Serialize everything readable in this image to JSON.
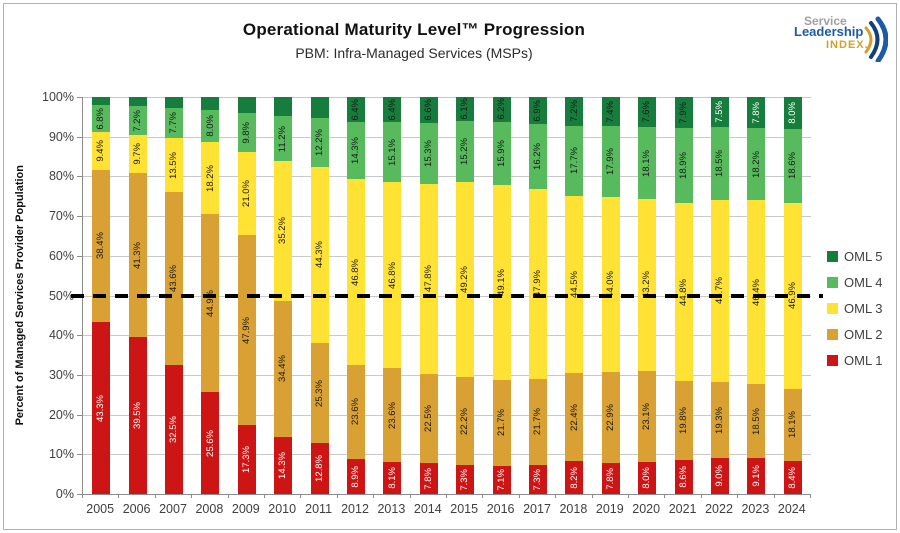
{
  "header": {
    "title": "Operational Maturity Level™ Progression",
    "subtitle": "PBM: Infra-Managed Services (MSPs)"
  },
  "logo": {
    "word1": "Service",
    "word2": "Leadership",
    "word3": "INDEX.",
    "word1_color": "#a0a0a0",
    "word2_color": "#1c5ba6",
    "word3_color": "#d2a02a"
  },
  "chart_data": {
    "type": "bar",
    "stacked": true,
    "title": "Operational Maturity Level™ Progression",
    "subtitle": "PBM: Infra-Managed Services (MSPs)",
    "xlabel": "",
    "ylabel": "Percent of Managed Services Provider Population",
    "ylim": [
      0,
      100
    ],
    "grid": true,
    "y_ticks": [
      0,
      10,
      20,
      30,
      40,
      50,
      60,
      70,
      80,
      90,
      100
    ],
    "y_tick_labels": [
      "0%",
      "10%",
      "20%",
      "30%",
      "40%",
      "50%",
      "60%",
      "70%",
      "80%",
      "90%",
      "100%"
    ],
    "categories": [
      "2005",
      "2006",
      "2007",
      "2008",
      "2009",
      "2010",
      "2011",
      "2012",
      "2013",
      "2014",
      "2015",
      "2016",
      "2017",
      "2018",
      "2019",
      "2020",
      "2021",
      "2022",
      "2023",
      "2024"
    ],
    "series": [
      {
        "name": "OML 1",
        "color": "#ce1515",
        "label_color": "#ffffff",
        "values": [
          43.3,
          39.5,
          32.5,
          25.6,
          17.3,
          14.3,
          12.8,
          8.9,
          8.1,
          7.8,
          7.3,
          7.1,
          7.3,
          8.2,
          7.8,
          8.0,
          8.6,
          9.0,
          9.1,
          8.4
        ],
        "labels": [
          "43.3%",
          "39.5%",
          "32.5%",
          "25.6%",
          "17.3%",
          "14.3%",
          "12.8%",
          "8.9%",
          "8.1%",
          "7.8%",
          "7.3%",
          "7.1%",
          "7.3%",
          "8.2%",
          "7.8%",
          "8.0%",
          "8.6%",
          "9.0%",
          "9.1%",
          "8.4%"
        ]
      },
      {
        "name": "OML 2",
        "color": "#d9a033",
        "label_color": "#1a1a1a",
        "values": [
          38.4,
          41.3,
          43.6,
          44.9,
          47.9,
          34.4,
          25.3,
          23.6,
          23.6,
          22.5,
          22.2,
          21.7,
          21.7,
          22.4,
          22.9,
          23.1,
          19.8,
          19.3,
          18.5,
          18.1
        ],
        "labels": [
          "38.4%",
          "41.3%",
          "43.6%",
          "44.9%",
          "47.9%",
          "34.4%",
          "25.3%",
          "23.6%",
          "23.6%",
          "22.5%",
          "22.2%",
          "21.7%",
          "21.7%",
          "22.4%",
          "22.9%",
          "23.1%",
          "19.8%",
          "19.3%",
          "18.5%",
          "18.1%"
        ]
      },
      {
        "name": "OML 3",
        "color": "#ffe234",
        "label_color": "#1a1a1a",
        "values": [
          9.4,
          9.7,
          13.5,
          18.2,
          21.0,
          35.2,
          44.3,
          46.8,
          46.8,
          47.8,
          49.2,
          49.1,
          47.9,
          44.5,
          44.0,
          43.2,
          44.8,
          45.7,
          46.4,
          46.9
        ],
        "labels": [
          "9.4%",
          "9.7%",
          "13.5%",
          "18.2%",
          "21.0%",
          "35.2%",
          "44.3%",
          "46.8%",
          "46.8%",
          "47.8%",
          "49.2%",
          "49.1%",
          "47.9%",
          "44.5%",
          "44.0%",
          "43.2%",
          "44.8%",
          "45.7%",
          "46.4%",
          "46.9%"
        ]
      },
      {
        "name": "OML 4",
        "color": "#57ba5d",
        "label_color": "#1a1a1a",
        "values": [
          6.8,
          7.2,
          7.7,
          8.0,
          9.8,
          11.2,
          12.2,
          14.3,
          15.1,
          15.3,
          15.2,
          15.9,
          16.2,
          17.7,
          17.9,
          18.1,
          18.9,
          18.5,
          18.2,
          18.6
        ],
        "labels": [
          "6.8%",
          "7.2%",
          "7.7%",
          "8.0%",
          "9.8%",
          "11.2%",
          "12.2%",
          "14.3%",
          "15.1%",
          "15.3%",
          "15.2%",
          "15.9%",
          "16.2%",
          "17.7%",
          "17.9%",
          "18.1%",
          "18.9%",
          "18.5%",
          "18.2%",
          "18.6%"
        ]
      },
      {
        "name": "OML 5",
        "color": "#177d3d",
        "label_color": "#1a1a1a",
        "values": [
          2.1,
          2.3,
          2.7,
          3.3,
          4.0,
          4.9,
          5.4,
          6.4,
          6.4,
          6.6,
          6.1,
          6.2,
          6.9,
          7.2,
          7.4,
          7.6,
          7.9,
          7.5,
          7.8,
          8.0
        ],
        "labels": [
          "",
          "",
          "",
          "",
          "",
          "",
          "",
          "6.4%",
          "6.4%",
          "6.6%",
          "6.1%",
          "6.2%",
          "6.9%",
          "7.2%",
          "7.4%",
          "7.6%",
          "7.9%",
          "7.5%",
          "7.8%",
          "8.0%"
        ],
        "label_color_overrides": {
          "17": "#ffffff",
          "18": "#ffffff",
          "19": "#ffffff"
        }
      }
    ],
    "reference_line": {
      "value": 50,
      "style": "dashed",
      "color": "#000000"
    },
    "legend": {
      "position": "right",
      "items": [
        {
          "label": "OML 5",
          "color": "#177d3d"
        },
        {
          "label": "OML 4",
          "color": "#57ba5d"
        },
        {
          "label": "OML 3",
          "color": "#ffe234"
        },
        {
          "label": "OML 2",
          "color": "#d9a033"
        },
        {
          "label": "OML 1",
          "color": "#ce1515"
        }
      ]
    }
  }
}
